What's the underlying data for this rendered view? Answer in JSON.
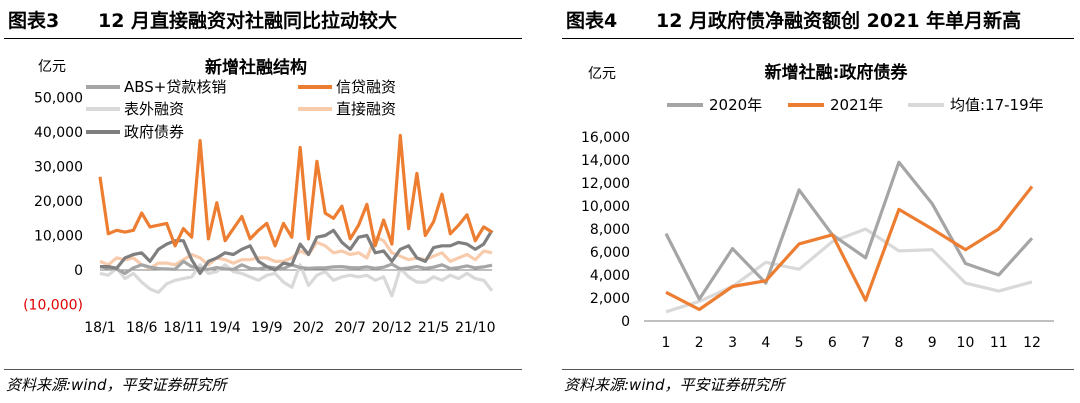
{
  "figures": [
    {
      "label": "图表3",
      "title": "12 月直接融资对社融同比拉动较大",
      "source": "资料来源:wind，平安证券研究所"
    },
    {
      "label": "图表4",
      "title": "12 月政府债净融资额创 2021 年单月新高",
      "source": "资料来源:wind，平安证券研究所"
    }
  ],
  "colors": {
    "orange": "#ED7D31",
    "light_orange": "#F8CBAD",
    "gray": "#A5A5A5",
    "dark_gray": "#7F7F7F",
    "light_gray": "#D9D9D9",
    "negative_red": "#E00000"
  },
  "chart_data": [
    {
      "type": "line",
      "title": "新增社融结构",
      "ylabel": "亿元",
      "ylim": [
        -10000,
        50000
      ],
      "yticks": [
        "(10,000)",
        "0",
        "10,000",
        "20,000",
        "30,000",
        "40,000",
        "50,000"
      ],
      "ytick_values": [
        -10000,
        0,
        10000,
        20000,
        30000,
        40000,
        50000
      ],
      "x_tick_labels": [
        "18/1",
        "18/6",
        "18/11",
        "19/4",
        "19/9",
        "20/2",
        "20/7",
        "20/12",
        "21/5",
        "21/10"
      ],
      "grid": false,
      "legend_position": "top",
      "x": [
        "18/1",
        "18/2",
        "18/3",
        "18/4",
        "18/5",
        "18/6",
        "18/7",
        "18/8",
        "18/9",
        "18/10",
        "18/11",
        "18/12",
        "19/1",
        "19/2",
        "19/3",
        "19/4",
        "19/5",
        "19/6",
        "19/7",
        "19/8",
        "19/9",
        "19/10",
        "19/11",
        "19/12",
        "20/1",
        "20/2",
        "20/3",
        "20/4",
        "20/5",
        "20/6",
        "20/7",
        "20/8",
        "20/9",
        "20/10",
        "20/11",
        "20/12",
        "21/1",
        "21/2",
        "21/3",
        "21/4",
        "21/5",
        "21/6",
        "21/7",
        "21/8",
        "21/9",
        "21/10",
        "21/11",
        "21/12"
      ],
      "series": [
        {
          "name": "ABS+贷款核销",
          "color": "#A5A5A5",
          "values": [
            1000,
            500,
            300,
            -1000,
            600,
            1500,
            800,
            400,
            300,
            200,
            2500,
            1000,
            400,
            200,
            700,
            300,
            200,
            1500,
            500,
            300,
            900,
            600,
            400,
            1500,
            700,
            500,
            600,
            600,
            900,
            1000,
            700,
            600,
            900,
            500,
            800,
            1700,
            300,
            600,
            1000,
            500,
            800,
            1500,
            400,
            700,
            1200,
            600,
            900,
            1400
          ]
        },
        {
          "name": "信贷融资",
          "color": "#ED7D31",
          "values": [
            27000,
            10500,
            11500,
            11000,
            11500,
            16500,
            12500,
            13000,
            13500,
            7000,
            12000,
            9500,
            37500,
            9000,
            19500,
            8500,
            12000,
            15500,
            9000,
            11500,
            13500,
            7000,
            13500,
            9500,
            35500,
            9000,
            31500,
            16500,
            15000,
            18500,
            9000,
            13000,
            19000,
            7000,
            14500,
            7500,
            39000,
            12000,
            28000,
            10000,
            14000,
            22000,
            10500,
            13000,
            16000,
            8500,
            12500,
            11000
          ]
        },
        {
          "name": "表外融资",
          "color": "#D9D9D9",
          "values": [
            -1000,
            -1500,
            500,
            -2500,
            -1000,
            -3500,
            -5500,
            -6500,
            -4000,
            -3000,
            -2500,
            -2000,
            1500,
            -1000,
            -500,
            1500,
            -500,
            -1000,
            -2000,
            -3000,
            -1500,
            -1000,
            -3500,
            -5000,
            1500,
            -4500,
            -1500,
            -500,
            -3000,
            -2000,
            -1500,
            -2000,
            -1500,
            -3000,
            -2000,
            -7500,
            500,
            -2000,
            -3500,
            -3500,
            -2000,
            -3000,
            -1500,
            -2500,
            -1000,
            -2500,
            -3000,
            -6000
          ]
        },
        {
          "name": "直接融资",
          "color": "#F8CBAD",
          "values": [
            2500,
            1500,
            3500,
            3000,
            3500,
            1500,
            500,
            2000,
            2000,
            1500,
            3000,
            4500,
            3500,
            1500,
            3500,
            3000,
            2000,
            3000,
            3000,
            3500,
            3500,
            2500,
            2500,
            3500,
            5500,
            4500,
            8000,
            7000,
            5000,
            5500,
            4500,
            5000,
            3500,
            9500,
            8500,
            5000,
            4000,
            3000,
            3500,
            3000,
            4000,
            5000,
            2500,
            3500,
            4500,
            3000,
            5500,
            5000
          ]
        },
        {
          "name": "政府债券",
          "color": "#7F7F7F",
          "values": [
            1000,
            1000,
            500,
            3500,
            4500,
            5000,
            2500,
            6000,
            7500,
            8500,
            8500,
            3000,
            -1000,
            2500,
            3500,
            5000,
            4500,
            6000,
            7000,
            2500,
            1000,
            0,
            2000,
            1500,
            7500,
            4500,
            9500,
            10000,
            11500,
            8000,
            6000,
            9500,
            10000,
            5000,
            5500,
            2500,
            6000,
            7000,
            3500,
            2500,
            6500,
            7000,
            7000,
            8000,
            7500,
            6000,
            7500,
            11500
          ]
        }
      ]
    },
    {
      "type": "line",
      "title": "新增社融:政府债券",
      "ylabel": "亿元",
      "ylim": [
        0,
        16000
      ],
      "yticks": [
        "0",
        "2,000",
        "4,000",
        "6,000",
        "8,000",
        "10,000",
        "12,000",
        "14,000",
        "16,000"
      ],
      "ytick_values": [
        0,
        2000,
        4000,
        6000,
        8000,
        10000,
        12000,
        14000,
        16000
      ],
      "categories": [
        "1",
        "2",
        "3",
        "4",
        "5",
        "6",
        "7",
        "8",
        "9",
        "10",
        "11",
        "12"
      ],
      "grid": false,
      "legend_position": "top",
      "series": [
        {
          "name": "2020年",
          "color": "#A5A5A5",
          "values": [
            7600,
            1900,
            6300,
            3300,
            11400,
            7500,
            5500,
            13800,
            10200,
            5000,
            4000,
            7200
          ]
        },
        {
          "name": "2021年",
          "color": "#ED7D31",
          "values": [
            2500,
            1000,
            3000,
            3500,
            6700,
            7500,
            1800,
            9700,
            8000,
            6200,
            8000,
            11700
          ]
        },
        {
          "name": "均值:17-19年",
          "color": "#D9D9D9",
          "values": [
            800,
            1700,
            3000,
            5100,
            4500,
            6900,
            8000,
            6100,
            6200,
            3300,
            2600,
            3400
          ]
        }
      ]
    }
  ]
}
